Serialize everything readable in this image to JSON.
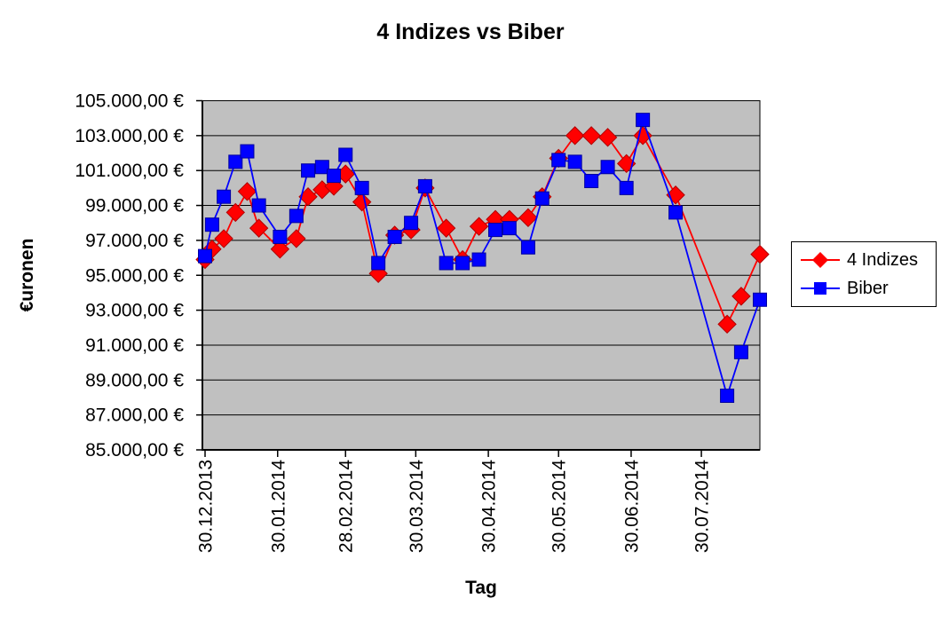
{
  "title": "4 Indizes vs Biber",
  "y_axis": {
    "title": "€uronen",
    "tick_labels": [
      "105.000,00 €",
      "103.000,00 €",
      "101.000,00 €",
      "99.000,00 €",
      "97.000,00 €",
      "95.000,00 €",
      "93.000,00 €",
      "91.000,00 €",
      "89.000,00 €",
      "87.000,00 €",
      "85.000,00 €"
    ],
    "tick_values": [
      105000,
      103000,
      101000,
      99000,
      97000,
      95000,
      93000,
      91000,
      89000,
      87000,
      85000
    ],
    "min": 85000,
    "max": 105000
  },
  "x_axis": {
    "title": "Tag",
    "tick_labels": [
      "30.12.2013",
      "30.01.2014",
      "28.02.2014",
      "30.03.2014",
      "30.04.2014",
      "30.05.2014",
      "30.06.2014",
      "30.07.2014"
    ],
    "tick_days": [
      0,
      31,
      60,
      90,
      121,
      151,
      182,
      212
    ]
  },
  "legend": {
    "items": [
      {
        "name": "4 Indizes",
        "color": "#ff0000",
        "edge": "#b00000",
        "marker": "diamond"
      },
      {
        "name": "Biber",
        "color": "#0000ff",
        "edge": "#0000a0",
        "marker": "square"
      }
    ]
  },
  "colors": {
    "plot_bg": "#c0c0c0",
    "grid": "#000000",
    "axis": "#000000"
  },
  "chart_data": {
    "type": "line",
    "title": "4 Indizes vs Biber",
    "xlabel": "Tag",
    "ylabel": "€uronen",
    "x_unit": "days since first point (first point = 30.12.2013)",
    "x": [
      0,
      3,
      8,
      13,
      18,
      23,
      32,
      39,
      44,
      50,
      55,
      60,
      67,
      74,
      81,
      88,
      94,
      103,
      110,
      117,
      124,
      130,
      138,
      144,
      151,
      158,
      165,
      172,
      180,
      187,
      201,
      223,
      229,
      237
    ],
    "series": [
      {
        "name": "4 Indizes",
        "marker": "diamond",
        "color": "#ff0000",
        "values": [
          95900,
          96500,
          97100,
          98600,
          99800,
          97700,
          96500,
          97100,
          99500,
          99900,
          100100,
          100800,
          99200,
          95100,
          97300,
          97600,
          100000,
          97700,
          95900,
          97800,
          98200,
          98200,
          98300,
          99500,
          101700,
          103000,
          103000,
          102900,
          101400,
          103000,
          99600,
          92200,
          93800,
          96200
        ]
      },
      {
        "name": "Biber",
        "marker": "square",
        "color": "#0000ff",
        "values": [
          96100,
          97900,
          99500,
          101500,
          102100,
          99000,
          97200,
          98400,
          101000,
          101200,
          100700,
          101900,
          100000,
          95700,
          97200,
          98000,
          100100,
          95700,
          95700,
          95900,
          97600,
          97700,
          96600,
          99400,
          101600,
          101500,
          100400,
          101200,
          100000,
          103900,
          98600,
          88100,
          90600,
          93600
        ]
      }
    ],
    "ylim": [
      85000,
      105000
    ],
    "grid": true,
    "legend_position": "right"
  }
}
